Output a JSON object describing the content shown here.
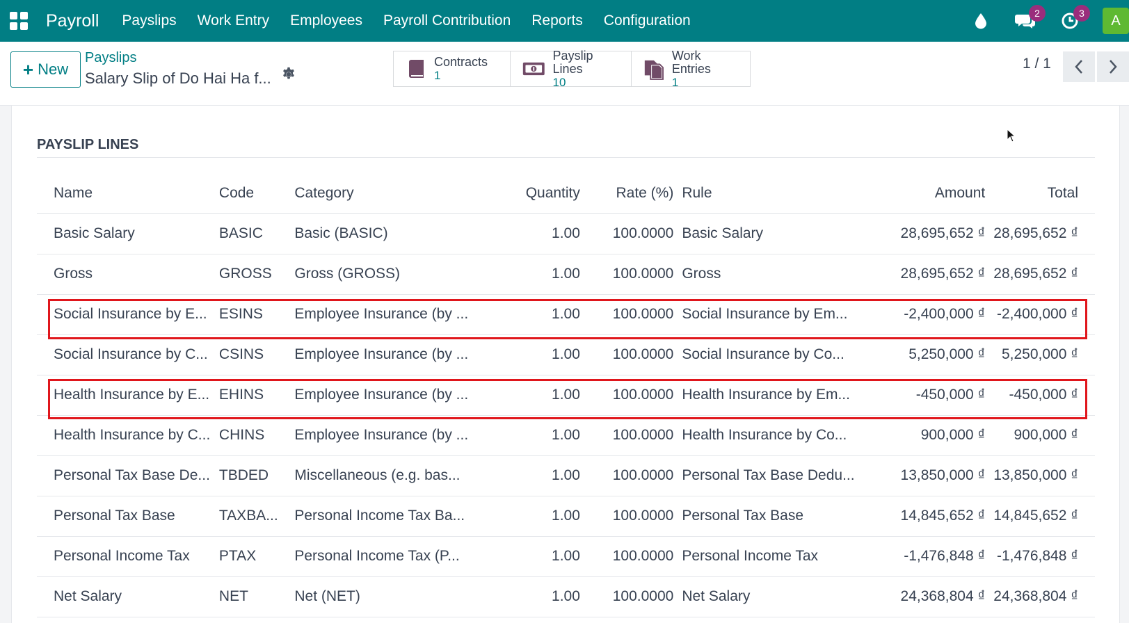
{
  "navbar": {
    "brand": "Payroll",
    "menu": [
      "Payslips",
      "Work Entry",
      "Employees",
      "Payroll Contribution",
      "Reports",
      "Configuration"
    ],
    "messages_badge": "2",
    "activities_badge": "3",
    "avatar_letter": "A",
    "color": "#017e84"
  },
  "control": {
    "new_label": "New",
    "breadcrumb": "Payslips",
    "record_title": "Salary Slip of Do Hai Ha f...",
    "smart_buttons": [
      {
        "label": "Contracts",
        "count": "1",
        "icon": "book-icon"
      },
      {
        "label": "Payslip Lines",
        "count": "10",
        "icon": "money-icon"
      },
      {
        "label": "Work Entries",
        "count": "1",
        "icon": "documents-icon"
      }
    ],
    "pager": "1 / 1"
  },
  "section": {
    "title": "PAYSLIP LINES"
  },
  "table": {
    "headers": [
      "Name",
      "Code",
      "Category",
      "Quantity",
      "Rate (%)",
      "Rule",
      "Amount",
      "Total"
    ],
    "rows": [
      {
        "name": "Basic Salary",
        "code": "BASIC",
        "category": "Basic (BASIC)",
        "quantity": "1.00",
        "rate": "100.0000",
        "rule": "Basic Salary",
        "amount": "28,695,652 ₫",
        "total": "28,695,652 ₫"
      },
      {
        "name": "Gross",
        "code": "GROSS",
        "category": "Gross (GROSS)",
        "quantity": "1.00",
        "rate": "100.0000",
        "rule": "Gross",
        "amount": "28,695,652 ₫",
        "total": "28,695,652 ₫"
      },
      {
        "name": "Social Insurance by E...",
        "code": "ESINS",
        "category": "Employee Insurance (by ...",
        "quantity": "1.00",
        "rate": "100.0000",
        "rule": "Social Insurance by Em...",
        "amount": "-2,400,000 ₫",
        "total": "-2,400,000 ₫"
      },
      {
        "name": "Social Insurance by C...",
        "code": "CSINS",
        "category": "Employee Insurance (by ...",
        "quantity": "1.00",
        "rate": "100.0000",
        "rule": "Social Insurance by Co...",
        "amount": "5,250,000 ₫",
        "total": "5,250,000 ₫"
      },
      {
        "name": "Health Insurance by E...",
        "code": "EHINS",
        "category": "Employee Insurance (by ...",
        "quantity": "1.00",
        "rate": "100.0000",
        "rule": "Health Insurance by Em...",
        "amount": "-450,000 ₫",
        "total": "-450,000 ₫"
      },
      {
        "name": "Health Insurance by C...",
        "code": "CHINS",
        "category": "Employee Insurance (by ...",
        "quantity": "1.00",
        "rate": "100.0000",
        "rule": "Health Insurance by Co...",
        "amount": "900,000 ₫",
        "total": "900,000 ₫"
      },
      {
        "name": "Personal Tax Base De...",
        "code": "TBDED",
        "category": "Miscellaneous (e.g. bas...",
        "quantity": "1.00",
        "rate": "100.0000",
        "rule": "Personal Tax Base Dedu...",
        "amount": "13,850,000 ₫",
        "total": "13,850,000 ₫"
      },
      {
        "name": "Personal Tax Base",
        "code": "TAXBA...",
        "category": "Personal Income Tax Ba...",
        "quantity": "1.00",
        "rate": "100.0000",
        "rule": "Personal Tax Base",
        "amount": "14,845,652 ₫",
        "total": "14,845,652 ₫"
      },
      {
        "name": "Personal Income Tax",
        "code": "PTAX",
        "category": "Personal Income Tax (P...",
        "quantity": "1.00",
        "rate": "100.0000",
        "rule": "Personal Income Tax",
        "amount": "-1,476,848 ₫",
        "total": "-1,476,848 ₫"
      },
      {
        "name": "Net Salary",
        "code": "NET",
        "category": "Net (NET)",
        "quantity": "1.00",
        "rate": "100.0000",
        "rule": "Net Salary",
        "amount": "24,368,804 ₫",
        "total": "24,368,804 ₫"
      }
    ],
    "highlight_color": "#e0161c"
  }
}
